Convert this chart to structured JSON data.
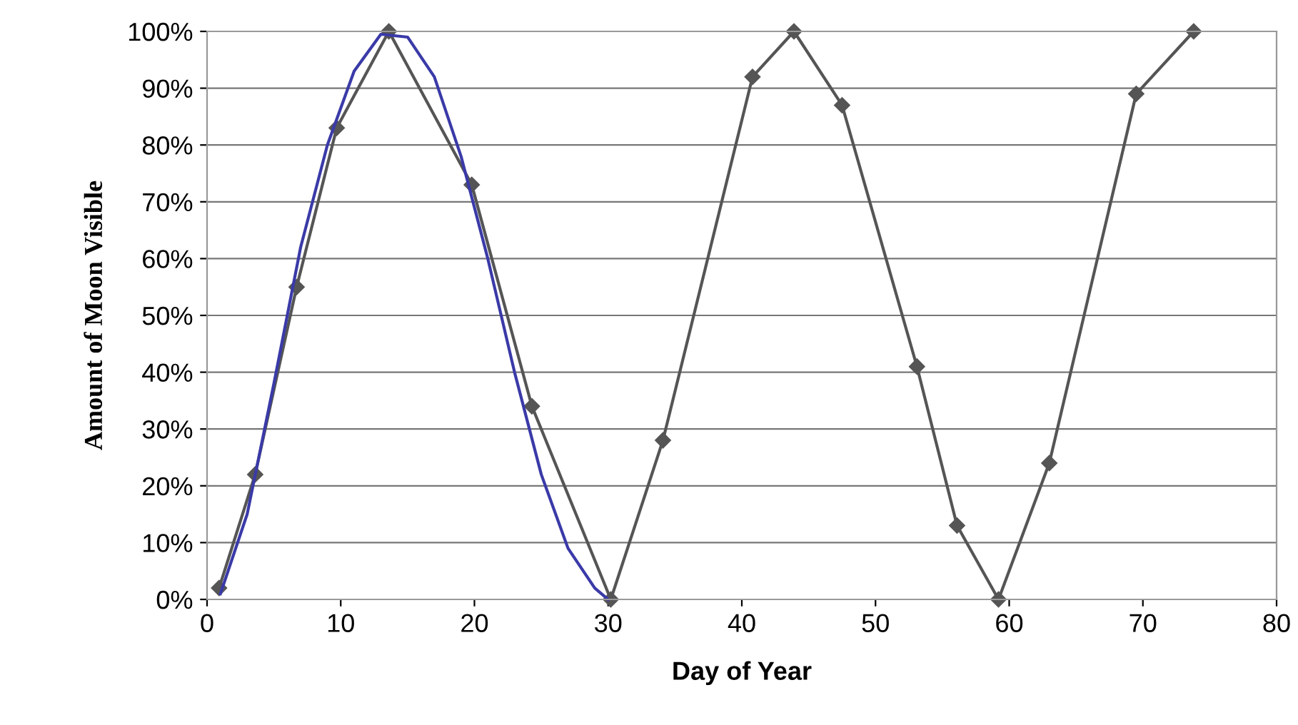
{
  "chart_data": {
    "type": "line",
    "xlabel": "Day of Year",
    "ylabel": "Amount of Moon Visible",
    "xlim": [
      0,
      80
    ],
    "xticks": [
      0,
      10,
      20,
      30,
      40,
      50,
      60,
      70,
      80
    ],
    "ylim": [
      0,
      100
    ],
    "yticks": [
      {
        "value": 0,
        "label": "0%"
      },
      {
        "value": 10,
        "label": "10%"
      },
      {
        "value": 20,
        "label": "20%"
      },
      {
        "value": 30,
        "label": "30%"
      },
      {
        "value": 40,
        "label": "40%"
      },
      {
        "value": 50,
        "label": "50%"
      },
      {
        "value": 60,
        "label": "60%"
      },
      {
        "value": 70,
        "label": "70%"
      },
      {
        "value": 80,
        "label": "80%"
      },
      {
        "value": 90,
        "label": "90%"
      },
      {
        "value": 100,
        "label": "100%"
      }
    ],
    "grid": "y",
    "legend": false,
    "series": [
      {
        "color": "#555555",
        "marker": "diamond",
        "x": [
          0.9,
          3.6,
          6.7,
          9.7,
          13.6,
          19.8,
          24.3,
          30.2,
          34.1,
          40.8,
          43.9,
          47.5,
          53.1,
          56.1,
          59.2,
          63,
          69.5,
          73.8
        ],
        "values": [
          2,
          22,
          55,
          83,
          100,
          73,
          34,
          0,
          28,
          92,
          100,
          87,
          41,
          13,
          0,
          24,
          89,
          100
        ]
      },
      {
        "color": "#3a3aa8",
        "marker": "none",
        "x": [
          1,
          3,
          5,
          7,
          9,
          11,
          13,
          15,
          17,
          19,
          21,
          23,
          25,
          27,
          29,
          30
        ],
        "values": [
          1,
          15,
          38,
          62,
          80,
          93,
          99.5,
          99,
          92,
          78,
          60,
          40,
          22,
          9,
          2,
          0
        ]
      }
    ]
  }
}
